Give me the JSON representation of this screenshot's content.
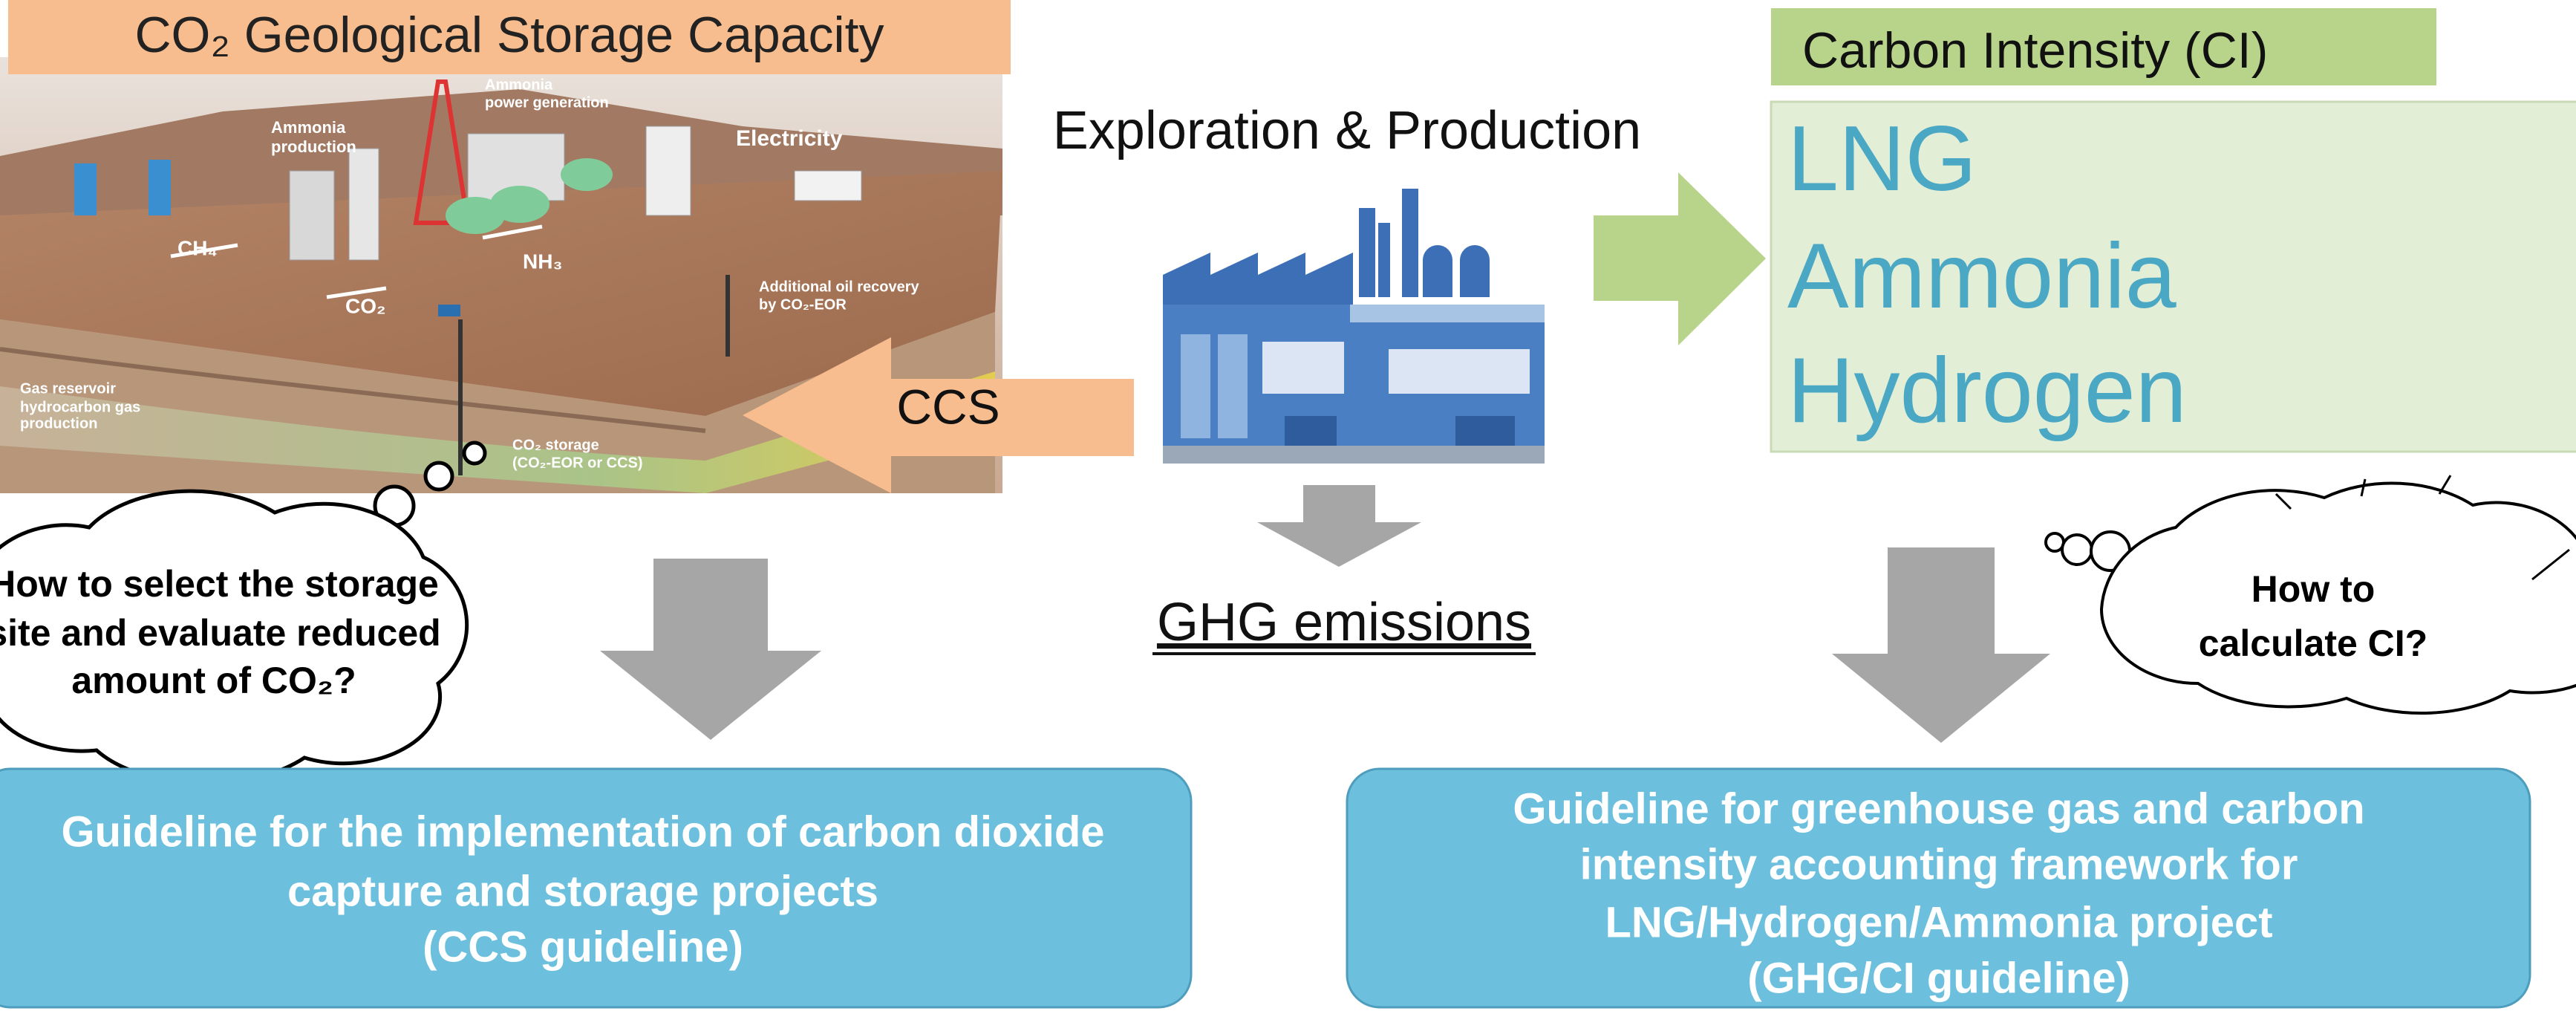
{
  "storage_panel": {
    "title": "CO₂ Geological Storage Capacity",
    "illustration_labels": [
      "Ammonia",
      "power generation",
      "Ammonia",
      "production",
      "Electricity",
      "CH₄",
      "NH₃",
      "CO₂",
      "Additional oil recovery",
      "by CO₂-EOR",
      "Gas reservoir",
      "hydrocarbon gas",
      "production",
      "CO₂ storage",
      "(CO₂-EOR or CCS)"
    ],
    "question": [
      "How to select the  storage",
      "site and evaluate  reduced",
      "amount of CO₂?"
    ]
  },
  "center": {
    "title": "Exploration & Production",
    "ccs_arrow": "CCS",
    "emissions": "GHG emissions"
  },
  "ci_panel": {
    "title": "Carbon Intensity (CI)",
    "products": [
      "LNG",
      "Ammonia",
      "Hydrogen"
    ],
    "question": [
      "How to",
      "calculate CI?"
    ]
  },
  "guidelines": [
    {
      "lines": [
        "Guideline for the implementation of carbon dioxide",
        "capture and storage projects",
        "(CCS guideline)"
      ]
    },
    {
      "lines": [
        "Guideline for greenhouse gas and carbon",
        "intensity accounting framework for",
        "LNG/Hydrogen/Ammonia project",
        "(GHG/CI guideline)"
      ]
    }
  ]
}
